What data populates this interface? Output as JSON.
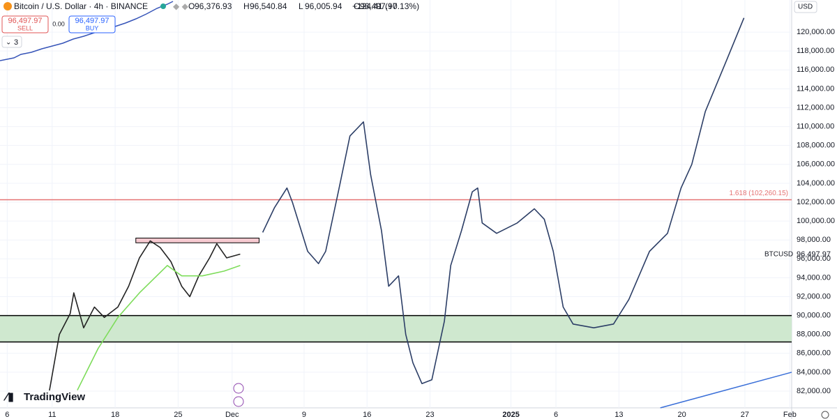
{
  "ui": {
    "symbol": "Bitcoin / U.S. Dollar · 4h · BINANCE",
    "ohlc": [
      {
        "label": "O",
        "value": "96,376.93"
      },
      {
        "label": "H",
        "value": "96,540.84"
      },
      {
        "label": "L",
        "value": "96,005.94"
      },
      {
        "label": "C",
        "value": "96,497.97"
      }
    ],
    "change": "+124.41 (+0.13%)",
    "sell_price": "96,497.97",
    "sell": "SELL",
    "spread": "0.00",
    "buy_price": "96,497.97",
    "buy": "BUY",
    "indicators": "3",
    "currency": "USD",
    "ticker": "BTCUSD",
    "last_price": "96,497.97",
    "brand": "TradingView"
  },
  "chart_data": {
    "type": "line",
    "xlim": [
      5.2,
      93.2
    ],
    "ylim": [
      80230,
      123400
    ],
    "xticks": [
      {
        "value": 6,
        "label": "6"
      },
      {
        "value": 11,
        "label": "11"
      },
      {
        "value": 18,
        "label": "18"
      },
      {
        "value": 25,
        "label": "25"
      },
      {
        "value": 31,
        "label": "Dec"
      },
      {
        "value": 39,
        "label": "9"
      },
      {
        "value": 46,
        "label": "16"
      },
      {
        "value": 53,
        "label": "23"
      },
      {
        "value": 62,
        "label": "2025"
      },
      {
        "value": 67,
        "label": "6"
      },
      {
        "value": 74,
        "label": "13"
      },
      {
        "value": 81,
        "label": "20"
      },
      {
        "value": 88,
        "label": "27"
      },
      {
        "value": 93,
        "label": "Feb"
      }
    ],
    "yticks": [
      {
        "value": 82000,
        "label": "82,000.00"
      },
      {
        "value": 84000,
        "label": "84,000.00"
      },
      {
        "value": 86000,
        "label": "86,000.00"
      },
      {
        "value": 88000,
        "label": "88,000.00"
      },
      {
        "value": 90000,
        "label": "90,000.00"
      },
      {
        "value": 92000,
        "label": "92,000.00"
      },
      {
        "value": 94000,
        "label": "94,000.00"
      },
      {
        "value": 96000,
        "label": "96,000.00"
      },
      {
        "value": 98000,
        "label": "98,000.00"
      },
      {
        "value": 100000,
        "label": "100,000.00"
      },
      {
        "value": 102000,
        "label": "102,000.00"
      },
      {
        "value": 104000,
        "label": "104,000.00"
      },
      {
        "value": 106000,
        "label": "106,000.00"
      },
      {
        "value": 108000,
        "label": "108,000.00"
      },
      {
        "value": 110000,
        "label": "110,000.00"
      },
      {
        "value": 112000,
        "label": "112,000.00"
      },
      {
        "value": 114000,
        "label": "114,000.00"
      },
      {
        "value": 116000,
        "label": "116,000.00"
      },
      {
        "value": 118000,
        "label": "118,000.00"
      },
      {
        "value": 120000,
        "label": "120,000.00"
      }
    ],
    "grid": true,
    "zones": [
      {
        "from": 87200,
        "to": 90000,
        "color": "#cfe8cf"
      }
    ],
    "levels": [
      {
        "value": 102260.15,
        "label": "1.618 (102,260.15)",
        "color": "#e57373"
      },
      {
        "value": 90000,
        "color": "#000000"
      },
      {
        "value": 87200,
        "color": "#000000"
      }
    ],
    "box": {
      "x": [
        20.3,
        34.0
      ],
      "y": [
        97700,
        98200
      ],
      "color": "#f6c9d0"
    },
    "trendline": {
      "x": [
        78.6,
        93.2
      ],
      "y": [
        80230,
        84000
      ],
      "color": "#3a6fd8"
    },
    "series": [
      {
        "color": "#222222",
        "x": [
          10.7,
          11.8,
          13.0,
          13.4,
          14.5,
          15.7,
          16.8,
          18.3,
          19.5,
          20.7,
          21.9,
          23.0,
          24.2,
          25.4,
          26.3,
          27.3,
          28.5,
          29.3,
          30.4,
          31.9
        ],
        "values": [
          82070,
          88000,
          90200,
          92400,
          88700,
          90900,
          89800,
          90900,
          93100,
          96100,
          97900,
          97200,
          95700,
          93100,
          92000,
          94200,
          96100,
          97600,
          96100,
          96500
        ]
      },
      {
        "color": "#7ddc5a",
        "x": [
          13.8,
          16.1,
          18.3,
          20.7,
          23.8,
          25.4,
          27.7,
          30.1,
          31.9
        ],
        "values": [
          82100,
          86500,
          89800,
          92400,
          95300,
          94200,
          94200,
          94700,
          95300
        ]
      },
      {
        "color": "#2c3e66",
        "x": [
          34.4,
          35.7,
          37.1,
          37.7,
          39.4,
          40.6,
          41.4,
          42.9,
          44.1,
          45.6,
          46.4,
          47.6,
          48.4,
          49.5,
          50.3,
          51.1,
          52.1,
          53.2,
          54.6,
          55.3,
          56.5,
          57.7,
          58.3,
          58.8,
          60.4,
          62.7,
          64.6,
          65.7,
          66.7,
          67.8,
          68.9,
          71.2,
          73.4,
          75.1,
          77.4,
          79.4,
          80.9,
          82.1,
          83.6,
          86.0,
          87.9
        ],
        "values": [
          98800,
          101400,
          103500,
          102000,
          96800,
          95500,
          96800,
          103500,
          109000,
          110500,
          104900,
          99000,
          93100,
          94200,
          88000,
          85000,
          82800,
          83200,
          89400,
          95300,
          99000,
          103100,
          103500,
          99800,
          98700,
          99800,
          101300,
          100200,
          96800,
          90900,
          89100,
          88700,
          89100,
          91700,
          96800,
          98700,
          103500,
          106000,
          111600,
          117100,
          121500
        ]
      }
    ]
  }
}
